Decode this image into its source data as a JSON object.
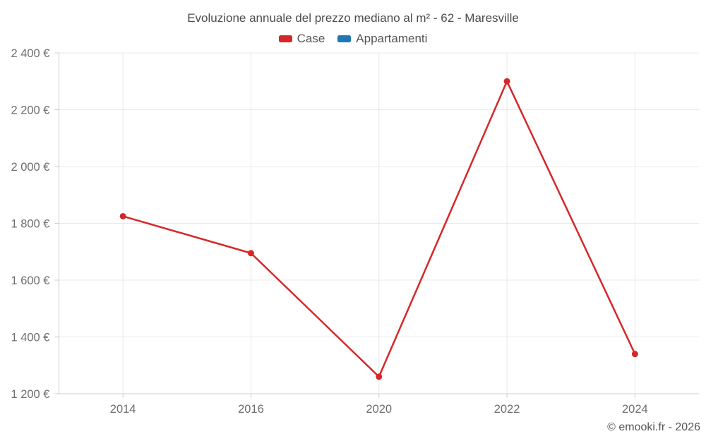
{
  "chart_data": {
    "type": "line",
    "title": "Evoluzione annuale del prezzo mediano al m² - 62 - Maresville",
    "categories": [
      "2014",
      "2016",
      "2020",
      "2022",
      "2024"
    ],
    "series": [
      {
        "name": "Case",
        "color": "#d62728",
        "values": [
          1825,
          1695,
          1260,
          2300,
          1340
        ]
      },
      {
        "name": "Appartamenti",
        "color": "#1f77b4",
        "values": []
      }
    ],
    "ylim": [
      1200,
      2400
    ],
    "ytick_step": 200,
    "yticks": [
      {
        "value": 1200,
        "label": "1 200 €"
      },
      {
        "value": 1400,
        "label": "1 400 €"
      },
      {
        "value": 1600,
        "label": "1 600 €"
      },
      {
        "value": 1800,
        "label": "1 800 €"
      },
      {
        "value": 2000,
        "label": "2 000 €"
      },
      {
        "value": 2200,
        "label": "2 200 €"
      },
      {
        "value": 2400,
        "label": "2 400 €"
      }
    ],
    "grid": true,
    "legend_position": "top",
    "colors": {
      "gridline": "#e8e8e8",
      "axis_line": "#cccccc",
      "tick_label": "#6e6e6e",
      "title": "#4c4c4c",
      "legend_text": "#565656"
    }
  },
  "footer": {
    "copyright": "© emooki.fr - 2026"
  }
}
